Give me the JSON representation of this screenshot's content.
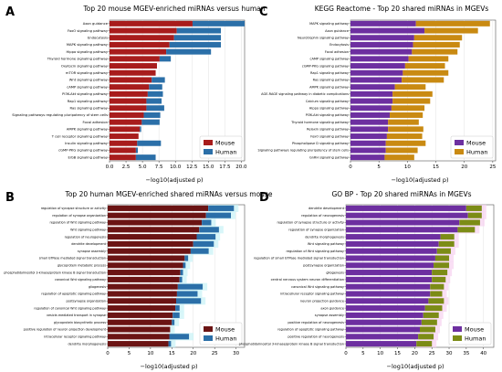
{
  "panel_letters": [
    "A",
    "B",
    "C",
    "D"
  ],
  "chart_data": [
    {
      "type": "bar",
      "orientation": "horizontal",
      "stacked": true,
      "title": "Top 20 mouse MGEV-enriched miRNAs versus human",
      "xlabel": "−log10(adjusted p)",
      "xlim": [
        0,
        20.5
      ],
      "xticks": [
        "0.0",
        "2.5",
        "5.0",
        "7.5",
        "10.0",
        "12.5",
        "15.0",
        "17.5",
        "20.0"
      ],
      "legend_position": "lower-right",
      "categories": [
        "Axon guidance",
        "FoxO signaling pathway",
        "Endocytosis",
        "MAPK signaling pathway",
        "Hippo signaling pathway",
        "Thyroid hormone signaling pathway",
        "Oxytocin signaling pathway",
        "mTOR signaling pathway",
        "Wnt signaling pathway",
        "cAMP signaling pathway",
        "PI3K-Akt signaling pathway",
        "Rap1 signaling pathway",
        "Ras signaling pathway",
        "Signaling pathways regulating pluripotency of stem cells",
        "Focal adhesion",
        "AMPK signaling pathway",
        "T cell receptor signaling pathway",
        "Insulin signaling pathway",
        "cGMP-PKG signaling pathway",
        "ErbB signaling pathway"
      ],
      "series": [
        {
          "name": "Mouse",
          "color": "#a81c1c",
          "values": [
            12.6,
            10.2,
            9.8,
            9.1,
            8.6,
            7.6,
            7.2,
            7.0,
            6.4,
            6.0,
            5.8,
            5.6,
            5.6,
            5.2,
            4.9,
            4.6,
            4.4,
            4.2,
            4.0,
            4.0
          ]
        },
        {
          "name": "Human",
          "color": "#2b6fa8",
          "values": [
            7.9,
            6.7,
            7.1,
            7.8,
            6.8,
            1.7,
            0.0,
            0.0,
            2.0,
            2.0,
            2.3,
            2.3,
            2.7,
            2.5,
            2.7,
            0.2,
            0.0,
            3.6,
            0.3,
            3.0
          ]
        }
      ]
    },
    {
      "type": "bar",
      "orientation": "horizontal",
      "stacked": true,
      "title": "KEGG Reactome - Top 20 shared miRNAs in MGEVs",
      "xlabel": "−log10(adjusted p)",
      "xlim": [
        0,
        25.5
      ],
      "xticks": [
        "0",
        "5",
        "10",
        "15",
        "20",
        "25"
      ],
      "legend_position": "lower-right",
      "categories": [
        "MAPK signaling pathway",
        "Axon guidance",
        "Neurotrophin signaling pathway",
        "Endocytosis",
        "Focal adhesion",
        "cAMP signaling pathway",
        "cGMP-PKG signaling pathway",
        "Rap1 signaling pathway",
        "Ras signaling pathway",
        "AMPK signaling pathway",
        "AGE-RAGE signaling pathway in diabetic complications",
        "Calcium signaling pathway",
        "Hippo signaling pathway",
        "PI3K-Akt signaling pathway",
        "Thyroid hormone signaling pathway",
        "Relaxin signaling pathway",
        "FoxO signaling pathway",
        "Phospholipase D signaling pathway",
        "Signaling pathways regulating pluripotency of stem cells",
        "GnRH signaling pathway"
      ],
      "series": [
        {
          "name": "Mouse",
          "color": "#6d2fa0",
          "values": [
            11.5,
            13.0,
            11.2,
            11.0,
            10.8,
            10.2,
            9.6,
            9.2,
            9.0,
            7.8,
            7.4,
            7.4,
            7.2,
            6.9,
            6.6,
            6.6,
            6.4,
            6.2,
            6.2,
            6.0
          ]
        },
        {
          "name": "Human",
          "color": "#c98a12",
          "values": [
            13.0,
            9.4,
            8.4,
            8.2,
            8.0,
            7.0,
            7.0,
            8.0,
            7.4,
            5.4,
            7.0,
            6.6,
            5.8,
            5.8,
            5.4,
            6.2,
            6.2,
            7.0,
            5.6,
            5.2
          ]
        }
      ]
    },
    {
      "type": "bar",
      "orientation": "horizontal",
      "stacked": true,
      "title": "Top 20 human MGEV-enriched shared miRNAs versus mouse",
      "xlabel": "−log10(adjusted p)",
      "xlim": [
        0,
        32
      ],
      "xticks": [
        "0",
        "5",
        "10",
        "15",
        "20",
        "25",
        "30"
      ],
      "legend_position": "lower-right",
      "categories": [
        "regulation of synapse structure or activity",
        "regulation of synapse organization",
        "regulation of Wnt signaling pathway",
        "Wnt signaling pathway",
        "regulation of neurogenesis",
        "dendrite development",
        "synapse assembly",
        "small GTPase mediated signal transduction",
        "glycoprotein metabolic process",
        "phosphatidylinositol 3-kinase/protein kinase B signal transduction",
        "canonical Wnt signaling pathway",
        "gliogenesis",
        "regulation of apoptotic signaling pathway",
        "postsynapse organization",
        "regulation of canonical Wnt signaling pathway",
        "vesicle-mediated transport in synapse",
        "glycoprotein biosynthetic process",
        "positive regulation of neuron projection development",
        "intracellular receptor signaling pathway",
        "dendrite morphogenesis"
      ],
      "series": [
        {
          "name": "Mouse",
          "color": "#6b1414",
          "values": [
            23.5,
            23.0,
            22.0,
            21.4,
            20.8,
            20.0,
            19.4,
            18.0,
            17.6,
            17.0,
            16.8,
            16.4,
            16.2,
            16.0,
            15.8,
            15.2,
            15.0,
            14.6,
            14.4,
            14.2
          ]
        },
        {
          "name": "Human",
          "color": "#2b6fa8",
          "values": [
            6.0,
            5.8,
            2.2,
            4.6,
            4.4,
            4.8,
            4.2,
            0.8,
            0.6,
            0.6,
            0.6,
            5.8,
            4.8,
            5.8,
            1.0,
            1.6,
            0.6,
            0.0,
            4.6,
            0.6
          ]
        }
      ]
    },
    {
      "type": "bar",
      "orientation": "horizontal",
      "stacked": true,
      "title": "GO BP - Top 20 shared miRNAs in MGEVs",
      "xlabel": "−log10(adjusted p)",
      "xlim": [
        0,
        43
      ],
      "xticks": [
        "0",
        "5",
        "10",
        "15",
        "20",
        "25",
        "30",
        "35",
        "40"
      ],
      "legend_position": "lower-right",
      "categories": [
        "dendrite development",
        "regulation of neurogenesis",
        "regulation of synapse structure or activity",
        "regulation of synapse organization",
        "dendrite morphogenesis",
        "Wnt signaling pathway",
        "regulation of Wnt signaling pathway",
        "regulation of small GTPase mediated signal transduction",
        "postsynapse organization",
        "gliogenesis",
        "central nervous system neuron differentiation",
        "canonical Wnt signaling pathway",
        "intracellular receptor signaling pathway",
        "neuron projection guidance",
        "axon guidance",
        "synapse assembly",
        "positive regulation of neurogenesis",
        "regulation of apoptotic signaling pathway",
        "positive regulation of neurogenesis",
        "phosphatidylinositol 3-kinase/protein kinase B signal transduction"
      ],
      "series": [
        {
          "name": "Mouse",
          "color": "#6d2fa0",
          "values": [
            35.0,
            35.5,
            33.0,
            32.5,
            27.5,
            27.0,
            26.5,
            26.0,
            25.5,
            25.0,
            25.0,
            24.5,
            24.5,
            24.0,
            23.0,
            22.5,
            22.0,
            21.5,
            21.0,
            20.5
          ]
        },
        {
          "name": "Human",
          "color": "#7c8c16",
          "values": [
            4.5,
            4.0,
            6.0,
            5.0,
            4.0,
            4.5,
            4.0,
            4.0,
            4.5,
            4.5,
            4.0,
            4.0,
            3.5,
            4.5,
            5.0,
            4.5,
            4.5,
            4.5,
            4.5,
            4.5
          ]
        }
      ]
    }
  ]
}
